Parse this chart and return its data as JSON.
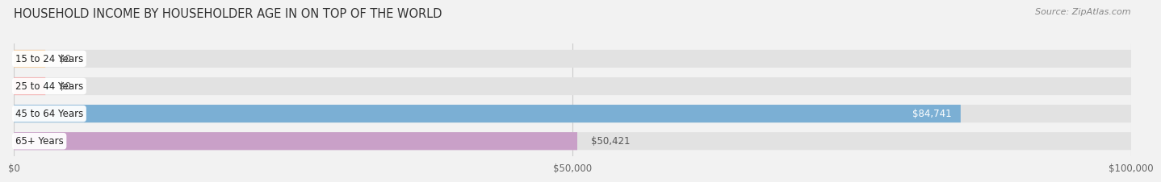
{
  "title": "HOUSEHOLD INCOME BY HOUSEHOLDER AGE IN ON TOP OF THE WORLD",
  "source": "Source: ZipAtlas.com",
  "categories": [
    "15 to 24 Years",
    "25 to 44 Years",
    "45 to 64 Years",
    "65+ Years"
  ],
  "values": [
    0,
    0,
    84741,
    50421
  ],
  "bar_colors": [
    "#f5c896",
    "#f0a0a0",
    "#7bafd4",
    "#c9a0c8"
  ],
  "value_labels": [
    "$0",
    "$0",
    "$84,741",
    "$50,421"
  ],
  "value_label_inside": [
    false,
    false,
    true,
    false
  ],
  "value_label_color_inside": "#ffffff",
  "value_label_color_outside": "#555555",
  "xmax": 100000,
  "xticks": [
    0,
    50000,
    100000
  ],
  "xticklabels": [
    "$0",
    "$50,000",
    "$100,000"
  ],
  "bg_color": "#f2f2f2",
  "bar_bg_color": "#e2e2e2",
  "title_fontsize": 10.5,
  "source_fontsize": 8,
  "bar_label_fontsize": 8.5,
  "tick_fontsize": 8.5,
  "bar_height": 0.65,
  "bar_gap": 0.35
}
